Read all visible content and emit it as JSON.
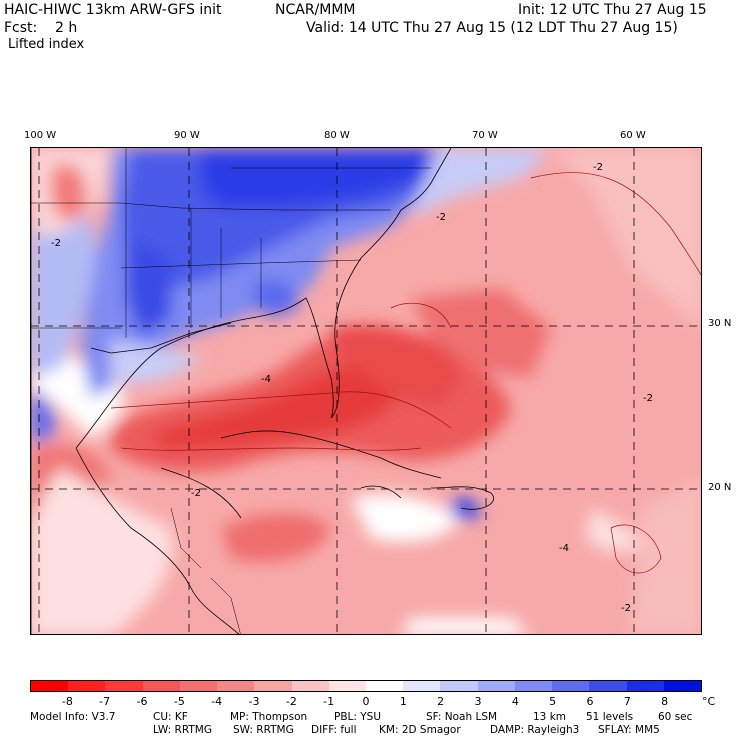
{
  "header": {
    "model": "HAIC-HIWC 13km ARW-GFS init",
    "org": "NCAR/MMM",
    "init": "Init: 12 UTC Thu 27 Aug 15",
    "fcst": "Fcst:    2 h",
    "valid": "Valid: 14 UTC Thu 27 Aug 15 (12 LDT Thu 27 Aug 15)",
    "field": "Lifted index"
  },
  "map": {
    "lon_labels": [
      "100 W",
      "90 W",
      "80 W",
      "70 W",
      "60 W"
    ],
    "lat_labels": [
      "30 N",
      "20 N"
    ],
    "contour_labels": [
      "-2",
      "-4"
    ],
    "colors": {
      "deep_blue": "#1e2fe0",
      "mid_blue": "#5a6af0",
      "light_blue": "#aab3f5",
      "white": "#ffffff",
      "light_red": "#f7a9a9",
      "mid_red": "#f07272",
      "deep_red": "#e83a3a"
    }
  },
  "colorbar": {
    "ticks": [
      "-8",
      "-7",
      "-6",
      "-5",
      "-4",
      "-3",
      "-2",
      "-1",
      "0",
      "1",
      "2",
      "3",
      "4",
      "5",
      "6",
      "7",
      "8"
    ],
    "unit": "°C",
    "colors": [
      "#ff0000",
      "#ff2020",
      "#fb3b3b",
      "#f75656",
      "#f47070",
      "#f28787",
      "#f5a3a3",
      "#f9c4c4",
      "#fde3e3",
      "#ffffff",
      "#e3e6fd",
      "#c2c9fa",
      "#a1aaf6",
      "#7f8bf2",
      "#5e6ced",
      "#3d4de9",
      "#1c2ee4",
      "#0010e0"
    ]
  },
  "footer": {
    "line1": [
      "Model Info: V3.7",
      "CU: KF",
      "MP: Thompson",
      "PBL: YSU",
      "SF: Noah LSM",
      "13 km",
      "51 levels",
      "60 sec"
    ],
    "line2": [
      "LW: RRTMG",
      "SW: RRTMG",
      "DIFF: full",
      "KM: 2D Smagor",
      "DAMP: Rayleigh3",
      "SFLAY: MM5"
    ]
  }
}
